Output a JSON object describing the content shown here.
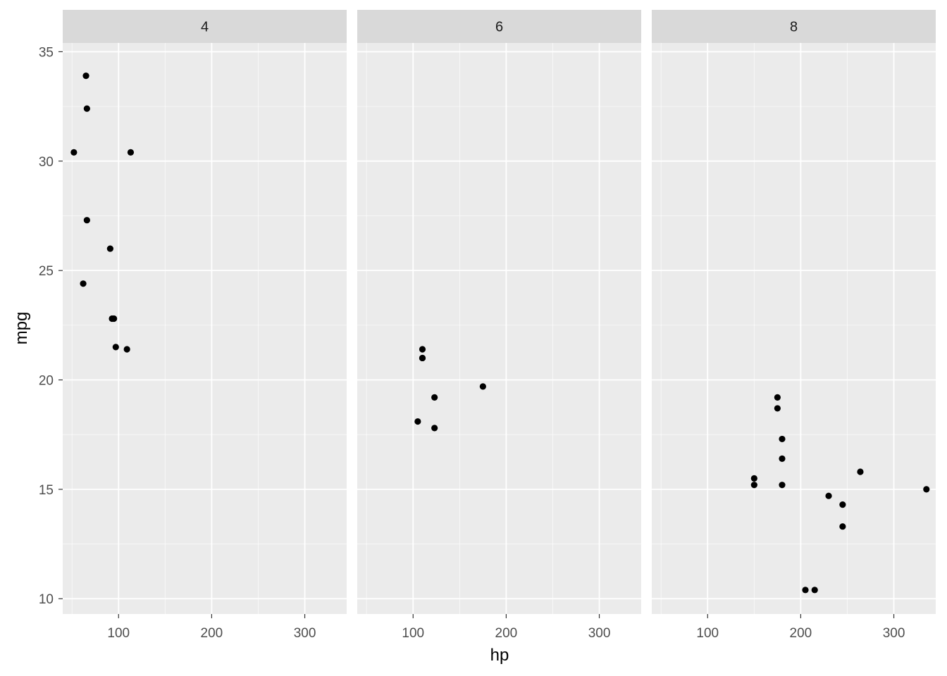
{
  "chart_data": {
    "type": "scatter",
    "facet_variable": "cyl",
    "xlabel": "hp",
    "ylabel": "mpg",
    "xlim": [
      40,
      345
    ],
    "ylim": [
      9.3,
      35.4
    ],
    "x_ticks": [
      100,
      200,
      300
    ],
    "y_ticks": [
      10,
      15,
      20,
      25,
      30,
      35
    ],
    "grid": true,
    "panels": [
      {
        "label": "4",
        "points": [
          {
            "x": 93,
            "y": 22.8
          },
          {
            "x": 62,
            "y": 24.4
          },
          {
            "x": 95,
            "y": 22.8
          },
          {
            "x": 66,
            "y": 32.4
          },
          {
            "x": 52,
            "y": 30.4
          },
          {
            "x": 65,
            "y": 33.9
          },
          {
            "x": 97,
            "y": 21.5
          },
          {
            "x": 66,
            "y": 27.3
          },
          {
            "x": 91,
            "y": 26.0
          },
          {
            "x": 113,
            "y": 30.4
          },
          {
            "x": 109,
            "y": 21.4
          }
        ]
      },
      {
        "label": "6",
        "points": [
          {
            "x": 110,
            "y": 21.0
          },
          {
            "x": 110,
            "y": 21.0
          },
          {
            "x": 110,
            "y": 21.4
          },
          {
            "x": 105,
            "y": 18.1
          },
          {
            "x": 123,
            "y": 19.2
          },
          {
            "x": 123,
            "y": 17.8
          },
          {
            "x": 175,
            "y": 19.7
          }
        ]
      },
      {
        "label": "8",
        "points": [
          {
            "x": 175,
            "y": 18.7
          },
          {
            "x": 245,
            "y": 14.3
          },
          {
            "x": 180,
            "y": 16.4
          },
          {
            "x": 180,
            "y": 17.3
          },
          {
            "x": 180,
            "y": 15.2
          },
          {
            "x": 205,
            "y": 10.4
          },
          {
            "x": 215,
            "y": 10.4
          },
          {
            "x": 230,
            "y": 14.7
          },
          {
            "x": 150,
            "y": 15.5
          },
          {
            "x": 150,
            "y": 15.2
          },
          {
            "x": 245,
            "y": 13.3
          },
          {
            "x": 175,
            "y": 19.2
          },
          {
            "x": 264,
            "y": 15.8
          },
          {
            "x": 335,
            "y": 15.0
          }
        ]
      }
    ]
  },
  "colors": {
    "panel_background": "#ebebeb",
    "strip_background": "#d9d9d9",
    "grid_major": "#ffffff",
    "points": "#000000"
  }
}
